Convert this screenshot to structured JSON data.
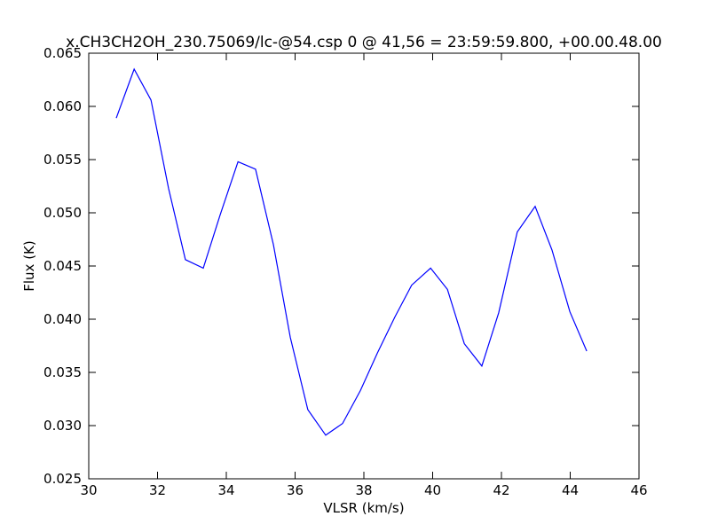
{
  "chart_data": {
    "type": "line",
    "title": "x.CH3CH2OH_230.75069/lc-@54.csp 0 @ 41,56 = 23:59:59.800, +00.00.48.00",
    "xlabel": "VLSR (km/s)",
    "ylabel": "Flux (K)",
    "x": [
      30.8,
      31.32,
      31.81,
      32.32,
      32.81,
      33.33,
      33.82,
      34.34,
      34.85,
      35.37,
      35.86,
      36.37,
      36.89,
      37.38,
      37.9,
      38.39,
      38.9,
      39.39,
      39.94,
      40.43,
      40.92,
      41.43,
      41.92,
      42.46,
      42.98,
      43.47,
      43.99,
      44.48
    ],
    "series": [
      {
        "color": "#0000ff",
        "values": [
          0.0589,
          0.0635,
          0.0606,
          0.0523,
          0.0456,
          0.0448,
          0.0498,
          0.0548,
          0.0541,
          0.047,
          0.0383,
          0.0315,
          0.0291,
          0.0302,
          0.0333,
          0.0368,
          0.0402,
          0.0432,
          0.0448,
          0.0428,
          0.0377,
          0.0356,
          0.0406,
          0.0482,
          0.0506,
          0.0465,
          0.0407,
          0.037
        ]
      }
    ],
    "xlim": [
      30,
      46
    ],
    "xticks": [
      30,
      32,
      34,
      36,
      38,
      40,
      42,
      44,
      46
    ],
    "ylim": [
      0.025,
      0.065
    ],
    "yticks": [
      0.025,
      {
        "value": 0.03,
        "label": "0.030"
      },
      0.035,
      {
        "value": 0.04,
        "label": "0.040"
      },
      0.045,
      {
        "value": 0.05,
        "label": "0.050"
      },
      0.055,
      {
        "value": 0.06,
        "label": "0.060"
      },
      0.065
    ],
    "grid": false
  }
}
